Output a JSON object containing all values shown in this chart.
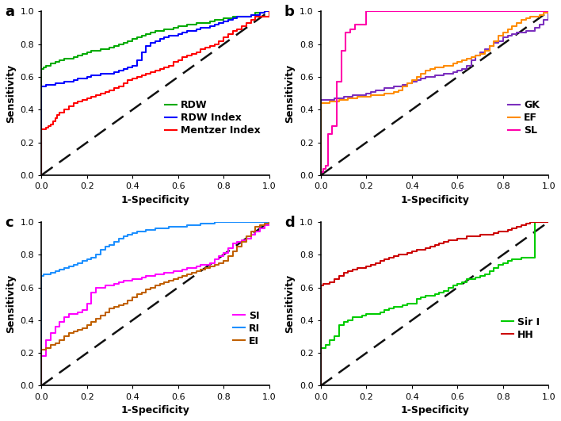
{
  "panels": [
    "a",
    "b",
    "c",
    "d"
  ],
  "panel_a": {
    "curves": [
      {
        "label": "RDW",
        "color": "#00AA00",
        "x": [
          0.0,
          0.0,
          0.01,
          0.02,
          0.03,
          0.04,
          0.05,
          0.06,
          0.07,
          0.08,
          0.1,
          0.12,
          0.14,
          0.16,
          0.18,
          0.2,
          0.22,
          0.24,
          0.26,
          0.28,
          0.3,
          0.32,
          0.34,
          0.36,
          0.38,
          0.4,
          0.42,
          0.44,
          0.46,
          0.48,
          0.5,
          0.52,
          0.54,
          0.56,
          0.58,
          0.6,
          0.62,
          0.64,
          0.66,
          0.68,
          0.7,
          0.72,
          0.74,
          0.76,
          0.78,
          0.8,
          0.82,
          0.84,
          0.86,
          0.88,
          0.9,
          0.92,
          0.94,
          0.96,
          0.98,
          1.0
        ],
        "y": [
          0.0,
          0.65,
          0.66,
          0.67,
          0.67,
          0.68,
          0.68,
          0.69,
          0.69,
          0.7,
          0.71,
          0.71,
          0.72,
          0.73,
          0.74,
          0.75,
          0.76,
          0.76,
          0.77,
          0.77,
          0.78,
          0.79,
          0.8,
          0.81,
          0.82,
          0.83,
          0.84,
          0.85,
          0.86,
          0.87,
          0.88,
          0.88,
          0.89,
          0.89,
          0.9,
          0.91,
          0.91,
          0.92,
          0.92,
          0.93,
          0.93,
          0.93,
          0.94,
          0.95,
          0.95,
          0.96,
          0.96,
          0.97,
          0.97,
          0.97,
          0.97,
          0.98,
          0.99,
          0.99,
          1.0,
          1.0
        ]
      },
      {
        "label": "RDW Index",
        "color": "#0000FF",
        "x": [
          0.0,
          0.0,
          0.01,
          0.02,
          0.03,
          0.04,
          0.06,
          0.08,
          0.1,
          0.12,
          0.14,
          0.16,
          0.18,
          0.2,
          0.22,
          0.24,
          0.26,
          0.28,
          0.3,
          0.32,
          0.34,
          0.36,
          0.38,
          0.4,
          0.42,
          0.44,
          0.46,
          0.48,
          0.5,
          0.52,
          0.54,
          0.56,
          0.58,
          0.6,
          0.62,
          0.64,
          0.66,
          0.68,
          0.7,
          0.72,
          0.74,
          0.76,
          0.78,
          0.8,
          0.82,
          0.84,
          0.86,
          0.88,
          0.9,
          0.92,
          0.94,
          0.96,
          0.98,
          1.0
        ],
        "y": [
          0.0,
          0.54,
          0.54,
          0.55,
          0.55,
          0.55,
          0.56,
          0.56,
          0.57,
          0.57,
          0.58,
          0.59,
          0.59,
          0.6,
          0.61,
          0.61,
          0.62,
          0.62,
          0.62,
          0.63,
          0.64,
          0.65,
          0.66,
          0.67,
          0.7,
          0.75,
          0.79,
          0.81,
          0.82,
          0.83,
          0.84,
          0.85,
          0.85,
          0.86,
          0.87,
          0.88,
          0.88,
          0.89,
          0.9,
          0.9,
          0.91,
          0.92,
          0.93,
          0.94,
          0.95,
          0.96,
          0.97,
          0.97,
          0.97,
          0.98,
          0.98,
          0.99,
          1.0,
          1.0
        ]
      },
      {
        "label": "Mentzer Index",
        "color": "#FF0000",
        "x": [
          0.0,
          0.0,
          0.01,
          0.02,
          0.03,
          0.04,
          0.05,
          0.06,
          0.07,
          0.08,
          0.1,
          0.12,
          0.14,
          0.16,
          0.18,
          0.2,
          0.22,
          0.24,
          0.26,
          0.28,
          0.3,
          0.32,
          0.34,
          0.36,
          0.38,
          0.4,
          0.42,
          0.44,
          0.46,
          0.48,
          0.5,
          0.52,
          0.54,
          0.56,
          0.58,
          0.6,
          0.62,
          0.64,
          0.66,
          0.68,
          0.7,
          0.72,
          0.74,
          0.76,
          0.78,
          0.8,
          0.82,
          0.84,
          0.86,
          0.88,
          0.9,
          0.92,
          0.94,
          0.96,
          0.98,
          1.0
        ],
        "y": [
          0.0,
          0.28,
          0.28,
          0.29,
          0.3,
          0.31,
          0.33,
          0.35,
          0.37,
          0.38,
          0.4,
          0.42,
          0.44,
          0.45,
          0.46,
          0.47,
          0.48,
          0.49,
          0.5,
          0.51,
          0.52,
          0.53,
          0.54,
          0.56,
          0.58,
          0.59,
          0.6,
          0.61,
          0.62,
          0.63,
          0.64,
          0.65,
          0.66,
          0.67,
          0.69,
          0.7,
          0.72,
          0.73,
          0.74,
          0.75,
          0.77,
          0.78,
          0.79,
          0.8,
          0.82,
          0.84,
          0.86,
          0.88,
          0.89,
          0.91,
          0.93,
          0.95,
          0.97,
          0.97,
          0.97,
          1.0
        ]
      }
    ]
  },
  "panel_b": {
    "curves": [
      {
        "label": "GK",
        "color": "#7B2FBE",
        "x": [
          0.0,
          0.0,
          0.01,
          0.02,
          0.04,
          0.06,
          0.08,
          0.1,
          0.12,
          0.14,
          0.16,
          0.18,
          0.2,
          0.22,
          0.24,
          0.26,
          0.28,
          0.3,
          0.32,
          0.34,
          0.36,
          0.38,
          0.4,
          0.42,
          0.44,
          0.46,
          0.48,
          0.5,
          0.52,
          0.54,
          0.56,
          0.58,
          0.6,
          0.62,
          0.64,
          0.66,
          0.68,
          0.7,
          0.72,
          0.74,
          0.76,
          0.78,
          0.8,
          0.82,
          0.84,
          0.86,
          0.88,
          0.9,
          0.92,
          0.94,
          0.96,
          0.98,
          1.0
        ],
        "y": [
          0.0,
          0.46,
          0.46,
          0.46,
          0.46,
          0.47,
          0.47,
          0.48,
          0.48,
          0.49,
          0.49,
          0.49,
          0.5,
          0.51,
          0.52,
          0.52,
          0.53,
          0.53,
          0.54,
          0.54,
          0.55,
          0.56,
          0.57,
          0.58,
          0.59,
          0.6,
          0.6,
          0.61,
          0.61,
          0.62,
          0.62,
          0.63,
          0.64,
          0.65,
          0.67,
          0.7,
          0.73,
          0.75,
          0.77,
          0.79,
          0.81,
          0.82,
          0.84,
          0.85,
          0.86,
          0.87,
          0.87,
          0.88,
          0.88,
          0.9,
          0.92,
          0.95,
          1.0
        ]
      },
      {
        "label": "EF",
        "color": "#FF8C00",
        "x": [
          0.0,
          0.0,
          0.01,
          0.02,
          0.04,
          0.06,
          0.08,
          0.1,
          0.12,
          0.14,
          0.16,
          0.18,
          0.2,
          0.22,
          0.24,
          0.26,
          0.28,
          0.3,
          0.32,
          0.34,
          0.36,
          0.38,
          0.4,
          0.42,
          0.44,
          0.46,
          0.48,
          0.5,
          0.52,
          0.54,
          0.56,
          0.58,
          0.6,
          0.62,
          0.64,
          0.66,
          0.68,
          0.7,
          0.72,
          0.74,
          0.76,
          0.78,
          0.8,
          0.82,
          0.84,
          0.86,
          0.88,
          0.9,
          0.92,
          0.94,
          0.96,
          0.98,
          1.0
        ],
        "y": [
          0.0,
          0.44,
          0.44,
          0.44,
          0.45,
          0.45,
          0.46,
          0.46,
          0.47,
          0.47,
          0.48,
          0.48,
          0.48,
          0.49,
          0.49,
          0.49,
          0.5,
          0.5,
          0.51,
          0.52,
          0.54,
          0.56,
          0.58,
          0.6,
          0.62,
          0.64,
          0.65,
          0.66,
          0.66,
          0.67,
          0.67,
          0.68,
          0.69,
          0.7,
          0.71,
          0.72,
          0.73,
          0.74,
          0.76,
          0.79,
          0.82,
          0.85,
          0.87,
          0.89,
          0.91,
          0.93,
          0.95,
          0.96,
          0.97,
          0.97,
          0.98,
          0.99,
          1.0
        ]
      },
      {
        "label": "SL",
        "color": "#FF00AA",
        "x": [
          0.0,
          0.0,
          0.01,
          0.02,
          0.03,
          0.05,
          0.07,
          0.09,
          0.11,
          0.13,
          0.15,
          0.2,
          0.25,
          0.3,
          1.0
        ],
        "y": [
          0.0,
          0.02,
          0.04,
          0.06,
          0.25,
          0.3,
          0.57,
          0.76,
          0.87,
          0.89,
          0.92,
          1.0,
          1.0,
          1.0,
          1.0
        ]
      }
    ]
  },
  "panel_c": {
    "curves": [
      {
        "label": "SI",
        "color": "#FF00FF",
        "x": [
          0.0,
          0.0,
          0.02,
          0.04,
          0.06,
          0.08,
          0.1,
          0.12,
          0.14,
          0.16,
          0.18,
          0.2,
          0.22,
          0.24,
          0.26,
          0.28,
          0.3,
          0.32,
          0.34,
          0.36,
          0.38,
          0.4,
          0.42,
          0.44,
          0.46,
          0.48,
          0.5,
          0.52,
          0.54,
          0.56,
          0.58,
          0.6,
          0.62,
          0.64,
          0.66,
          0.68,
          0.7,
          0.72,
          0.74,
          0.76,
          0.78,
          0.8,
          0.82,
          0.84,
          0.86,
          0.88,
          0.9,
          0.92,
          0.94,
          0.96,
          0.98,
          1.0
        ],
        "y": [
          0.0,
          0.18,
          0.28,
          0.32,
          0.36,
          0.39,
          0.42,
          0.44,
          0.44,
          0.45,
          0.46,
          0.5,
          0.57,
          0.6,
          0.6,
          0.61,
          0.61,
          0.62,
          0.63,
          0.64,
          0.64,
          0.65,
          0.65,
          0.66,
          0.67,
          0.67,
          0.68,
          0.68,
          0.69,
          0.69,
          0.7,
          0.7,
          0.71,
          0.72,
          0.72,
          0.73,
          0.74,
          0.74,
          0.75,
          0.77,
          0.79,
          0.81,
          0.84,
          0.87,
          0.88,
          0.89,
          0.9,
          0.92,
          0.94,
          0.96,
          0.98,
          1.0
        ]
      },
      {
        "label": "RI",
        "color": "#1E90FF",
        "x": [
          0.0,
          0.0,
          0.01,
          0.02,
          0.04,
          0.06,
          0.08,
          0.1,
          0.12,
          0.14,
          0.16,
          0.18,
          0.2,
          0.22,
          0.24,
          0.26,
          0.28,
          0.3,
          0.32,
          0.34,
          0.36,
          0.38,
          0.4,
          0.42,
          0.44,
          0.46,
          0.48,
          0.5,
          0.52,
          0.54,
          0.56,
          0.58,
          0.6,
          0.62,
          0.64,
          0.66,
          0.68,
          0.7,
          0.72,
          0.74,
          0.76,
          0.78,
          0.8,
          0.82,
          0.84,
          0.86,
          0.88,
          0.9,
          0.92,
          0.94,
          0.96,
          0.98,
          1.0
        ],
        "y": [
          0.0,
          0.67,
          0.68,
          0.68,
          0.69,
          0.7,
          0.71,
          0.72,
          0.73,
          0.74,
          0.75,
          0.76,
          0.77,
          0.78,
          0.8,
          0.83,
          0.85,
          0.86,
          0.88,
          0.9,
          0.91,
          0.92,
          0.93,
          0.94,
          0.94,
          0.95,
          0.95,
          0.96,
          0.96,
          0.96,
          0.97,
          0.97,
          0.97,
          0.97,
          0.98,
          0.98,
          0.98,
          0.99,
          0.99,
          0.99,
          1.0,
          1.0,
          1.0,
          1.0,
          1.0,
          1.0,
          1.0,
          1.0,
          1.0,
          1.0,
          1.0,
          1.0,
          1.0
        ]
      },
      {
        "label": "EI",
        "color": "#C06000",
        "x": [
          0.0,
          0.0,
          0.02,
          0.04,
          0.06,
          0.08,
          0.1,
          0.12,
          0.14,
          0.16,
          0.18,
          0.2,
          0.22,
          0.24,
          0.26,
          0.28,
          0.3,
          0.32,
          0.34,
          0.36,
          0.38,
          0.4,
          0.42,
          0.44,
          0.46,
          0.48,
          0.5,
          0.52,
          0.54,
          0.56,
          0.58,
          0.6,
          0.62,
          0.64,
          0.66,
          0.68,
          0.7,
          0.72,
          0.74,
          0.76,
          0.78,
          0.8,
          0.82,
          0.84,
          0.86,
          0.88,
          0.9,
          0.92,
          0.94,
          0.96,
          0.98,
          1.0
        ],
        "y": [
          0.0,
          0.22,
          0.23,
          0.25,
          0.26,
          0.28,
          0.3,
          0.32,
          0.33,
          0.34,
          0.35,
          0.37,
          0.39,
          0.41,
          0.43,
          0.45,
          0.47,
          0.48,
          0.49,
          0.5,
          0.52,
          0.54,
          0.56,
          0.57,
          0.59,
          0.6,
          0.61,
          0.62,
          0.63,
          0.64,
          0.65,
          0.66,
          0.67,
          0.68,
          0.69,
          0.7,
          0.71,
          0.72,
          0.73,
          0.74,
          0.75,
          0.76,
          0.79,
          0.82,
          0.85,
          0.88,
          0.91,
          0.94,
          0.97,
          0.98,
          0.99,
          1.0
        ]
      }
    ]
  },
  "panel_d": {
    "curves": [
      {
        "label": "Sir I",
        "color": "#00CC00",
        "x": [
          0.0,
          0.0,
          0.02,
          0.04,
          0.06,
          0.08,
          0.1,
          0.12,
          0.14,
          0.16,
          0.18,
          0.2,
          0.22,
          0.24,
          0.26,
          0.28,
          0.3,
          0.32,
          0.34,
          0.36,
          0.38,
          0.4,
          0.42,
          0.44,
          0.46,
          0.48,
          0.5,
          0.52,
          0.54,
          0.56,
          0.58,
          0.6,
          0.62,
          0.64,
          0.66,
          0.68,
          0.7,
          0.72,
          0.74,
          0.76,
          0.78,
          0.8,
          0.82,
          0.84,
          0.86,
          0.88,
          0.9,
          0.92,
          0.94,
          0.96,
          0.98,
          1.0
        ],
        "y": [
          0.0,
          0.23,
          0.25,
          0.28,
          0.3,
          0.37,
          0.39,
          0.4,
          0.42,
          0.42,
          0.43,
          0.44,
          0.44,
          0.44,
          0.45,
          0.46,
          0.47,
          0.48,
          0.48,
          0.49,
          0.5,
          0.5,
          0.53,
          0.54,
          0.55,
          0.55,
          0.56,
          0.57,
          0.58,
          0.6,
          0.61,
          0.62,
          0.63,
          0.65,
          0.65,
          0.66,
          0.67,
          0.68,
          0.7,
          0.72,
          0.74,
          0.75,
          0.76,
          0.77,
          0.77,
          0.78,
          0.78,
          0.78,
          1.0,
          1.0,
          1.0,
          1.0
        ]
      },
      {
        "label": "HH",
        "color": "#CC0000",
        "x": [
          0.0,
          0.0,
          0.01,
          0.02,
          0.04,
          0.06,
          0.08,
          0.1,
          0.12,
          0.14,
          0.16,
          0.18,
          0.2,
          0.22,
          0.24,
          0.26,
          0.28,
          0.3,
          0.32,
          0.34,
          0.36,
          0.38,
          0.4,
          0.42,
          0.44,
          0.46,
          0.48,
          0.5,
          0.52,
          0.54,
          0.56,
          0.58,
          0.6,
          0.62,
          0.64,
          0.66,
          0.68,
          0.7,
          0.72,
          0.74,
          0.76,
          0.78,
          0.8,
          0.82,
          0.84,
          0.86,
          0.88,
          0.9,
          0.92,
          0.94,
          0.96,
          0.98,
          1.0
        ],
        "y": [
          0.0,
          0.61,
          0.62,
          0.62,
          0.63,
          0.65,
          0.67,
          0.69,
          0.7,
          0.71,
          0.72,
          0.72,
          0.73,
          0.74,
          0.75,
          0.76,
          0.77,
          0.78,
          0.79,
          0.8,
          0.8,
          0.81,
          0.82,
          0.83,
          0.83,
          0.84,
          0.85,
          0.86,
          0.87,
          0.88,
          0.89,
          0.89,
          0.9,
          0.9,
          0.91,
          0.91,
          0.91,
          0.92,
          0.92,
          0.92,
          0.93,
          0.94,
          0.94,
          0.95,
          0.96,
          0.97,
          0.98,
          0.99,
          1.0,
          1.0,
          1.0,
          1.0,
          1.0
        ]
      }
    ]
  },
  "axis_fontsize": 9,
  "tick_fontsize": 8,
  "legend_fontsize": 9,
  "panel_label_fontsize": 13,
  "linewidth": 1.5,
  "diag_color": "#111111",
  "diag_linewidth": 1.8,
  "background_color": "#ffffff"
}
